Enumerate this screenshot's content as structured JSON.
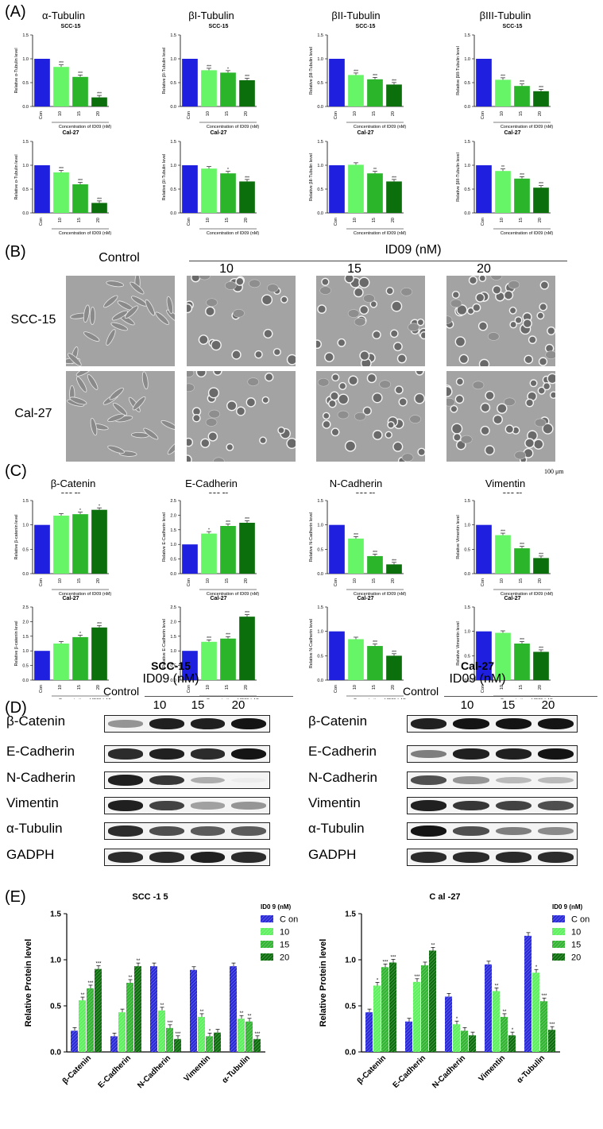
{
  "panel_letters": {
    "a": "(A)",
    "b": "(B)",
    "c": "(C)",
    "d": "(D)",
    "e": "(E)"
  },
  "panelA": {
    "titles": [
      "α-Tubulin",
      "βI-Tubulin",
      "βII-Tubulin",
      "βIII-Tubulin"
    ],
    "xlabel": "Concentration of ID09 (nM)",
    "categories": [
      "Con",
      "10",
      "15",
      "20"
    ],
    "colors": [
      "#1f1fe0",
      "#66f566",
      "#2ab52a",
      "#0b6f0b"
    ],
    "rows": [
      {
        "cell": "SCC-15",
        "ylabels": [
          "Relative α-Tubulin level",
          "Relative βI-Tubulin level",
          "Relative βII-Tubulin level",
          "Relative βIII-Tubulin level"
        ],
        "values": [
          [
            1.0,
            0.83,
            0.62,
            0.19
          ],
          [
            1.0,
            0.76,
            0.71,
            0.55
          ],
          [
            1.0,
            0.66,
            0.57,
            0.46
          ],
          [
            1.0,
            0.56,
            0.43,
            0.32
          ]
        ],
        "stars": [
          [
            "",
            "***",
            "***",
            "***"
          ],
          [
            "",
            "***",
            "*",
            "***"
          ],
          [
            "",
            "***",
            "***",
            "***"
          ],
          [
            "",
            "***",
            "***",
            "***"
          ]
        ]
      },
      {
        "cell": "Cal-27",
        "ylabels": [
          "Relative α-Tubulin level",
          "Relative βI-Tubulin level",
          "Relative βII-Tubulin level",
          "Relative βIII-Tubulin level"
        ],
        "values": [
          [
            1.0,
            0.85,
            0.6,
            0.21
          ],
          [
            1.0,
            0.93,
            0.83,
            0.66
          ],
          [
            1.0,
            1.01,
            0.83,
            0.66
          ],
          [
            1.0,
            0.88,
            0.72,
            0.53
          ]
        ],
        "stars": [
          [
            "",
            "***",
            "***",
            "***"
          ],
          [
            "",
            "",
            "*",
            "***"
          ],
          [
            "",
            "",
            "**",
            "***"
          ],
          [
            "",
            "**",
            "***",
            "***"
          ]
        ]
      }
    ]
  },
  "panelB": {
    "control": "Control",
    "treatment": "ID09 (nM)",
    "doses": [
      "10",
      "15",
      "20"
    ],
    "cells": [
      "SCC-15",
      "Cal-27"
    ],
    "scalebar": "100 μm"
  },
  "panelC": {
    "titles": [
      "β-Catenin",
      "E-Cadherin",
      "N-Cadherin",
      "Vimentin"
    ],
    "xlabel": "Concentration of ID09 (nM)",
    "categories": [
      "Con",
      "10",
      "15",
      "20"
    ],
    "colors": [
      "#1f1fe0",
      "#66f566",
      "#2ab52a",
      "#0b6f0b"
    ],
    "rows": [
      {
        "cell": "SCC-15",
        "ylabels": [
          "Relative β-catenin level",
          "Relative E-Cadherin level",
          "Relative N-Cadherin level",
          "Relative Vimentin level"
        ],
        "ylim": [
          [
            0,
            1.5
          ],
          [
            0,
            2.5
          ],
          [
            0,
            1.5
          ],
          [
            0,
            1.5
          ]
        ],
        "yticks": [
          [
            "0.0",
            "0.5",
            "1.0",
            "1.5"
          ],
          [
            "0.0",
            "0.5",
            "1.0",
            "1.5",
            "2.0",
            "2.5"
          ],
          [
            "0.0",
            "0.5",
            "1.0",
            "1.5"
          ],
          [
            "0.0",
            "0.5",
            "1.0",
            "1.5"
          ]
        ],
        "values": [
          [
            1.0,
            1.19,
            1.22,
            1.31
          ],
          [
            1.0,
            1.37,
            1.63,
            1.74
          ],
          [
            1.0,
            0.72,
            0.36,
            0.19
          ],
          [
            1.0,
            0.79,
            0.52,
            0.32
          ]
        ],
        "stars": [
          [
            "",
            "",
            "*",
            "*"
          ],
          [
            "",
            "*",
            "***",
            "***"
          ],
          [
            "",
            "***",
            "***",
            "***"
          ],
          [
            "",
            "***",
            "***",
            "***"
          ]
        ]
      },
      {
        "cell": "Cal-27",
        "ylabels": [
          "Relative β-catenin level",
          "Relative E-Cadherin level",
          "Relative N-Cadherin level",
          "Relative Vimentin level"
        ],
        "ylim": [
          [
            0,
            2.5
          ],
          [
            0,
            2.5
          ],
          [
            0,
            1.5
          ],
          [
            0,
            1.5
          ]
        ],
        "yticks": [
          [
            "0.0",
            "0.5",
            "1.0",
            "1.5",
            "2.0",
            "2.5"
          ],
          [
            "0.0",
            "0.5",
            "1.0",
            "1.5",
            "2.0",
            "2.5"
          ],
          [
            "0.0",
            "0.5",
            "1.0",
            "1.5"
          ],
          [
            "0.0",
            "0.5",
            "1.0",
            "1.5"
          ]
        ],
        "values": [
          [
            1.0,
            1.25,
            1.47,
            1.8
          ],
          [
            1.0,
            1.31,
            1.42,
            2.17
          ],
          [
            1.0,
            0.84,
            0.7,
            0.5
          ],
          [
            1.0,
            0.97,
            0.75,
            0.58
          ]
        ],
        "stars": [
          [
            "",
            "",
            "*",
            "***"
          ],
          [
            "",
            "***",
            "***",
            "***"
          ],
          [
            "",
            "",
            "***",
            "***"
          ],
          [
            "",
            "",
            "***",
            "***"
          ]
        ]
      }
    ]
  },
  "panelD": {
    "left": {
      "cell": "SCC-15",
      "treatment": "ID09 (nM)",
      "control": "Control",
      "doses": [
        "10",
        "15",
        "20"
      ],
      "intensities": [
        [
          0.45,
          0.95,
          0.95,
          1.0
        ],
        [
          0.9,
          0.95,
          0.9,
          1.0
        ],
        [
          0.95,
          0.85,
          0.35,
          0.08
        ],
        [
          0.95,
          0.8,
          0.4,
          0.45
        ],
        [
          0.9,
          0.75,
          0.7,
          0.7
        ],
        [
          0.9,
          0.9,
          0.95,
          0.9
        ]
      ]
    },
    "right": {
      "cell": "Cal-27",
      "treatment": "ID09 (nM)",
      "control": "Control",
      "doses": [
        "10",
        "15",
        "20"
      ],
      "intensities": [
        [
          0.95,
          1.0,
          1.0,
          1.0
        ],
        [
          0.55,
          0.95,
          0.95,
          1.0
        ],
        [
          0.75,
          0.45,
          0.3,
          0.3
        ],
        [
          0.95,
          0.85,
          0.8,
          0.75
        ],
        [
          1.0,
          0.75,
          0.55,
          0.5
        ],
        [
          0.9,
          0.9,
          0.9,
          0.9
        ]
      ]
    },
    "proteins": [
      "β-Catenin",
      "E-Cadherin",
      "N-Cadherin",
      "Vimentin",
      "α-Tubulin",
      "GADPH"
    ]
  },
  "panelE": {
    "ylabel": "Relative Protein level",
    "legend_title": "ID0 9 (nM)",
    "legend": [
      "C on",
      "10",
      "15",
      "20"
    ],
    "categories": [
      "β-Catenin",
      "E-Cadherin",
      "N-Cadherin",
      "Vimentin",
      "α-Tubulin"
    ],
    "colors": [
      "#2a2ad8",
      "#5ef05e",
      "#33b533",
      "#0c6e0c"
    ],
    "yticks": [
      "0.0",
      "0.5",
      "1.0",
      "1.5"
    ],
    "charts": [
      {
        "title": "SCC -1 5",
        "series": [
          [
            0.23,
            0.17,
            0.93,
            0.89,
            0.93
          ],
          [
            0.56,
            0.43,
            0.45,
            0.38,
            0.36
          ],
          [
            0.69,
            0.75,
            0.26,
            0.17,
            0.33
          ],
          [
            0.9,
            0.93,
            0.14,
            0.21,
            0.14
          ]
        ],
        "stars": [
          [
            "",
            "",
            "",
            "",
            ""
          ],
          [
            "**",
            "",
            "**",
            "**",
            "**"
          ],
          [
            "***",
            "**",
            "***",
            "*",
            "**"
          ],
          [
            "***",
            "**",
            "***",
            "",
            "***"
          ]
        ]
      },
      {
        "title": "C al -27",
        "series": [
          [
            0.43,
            0.33,
            0.6,
            0.95,
            1.26
          ],
          [
            0.72,
            0.76,
            0.3,
            0.66,
            0.86
          ],
          [
            0.92,
            0.94,
            0.23,
            0.38,
            0.55
          ],
          [
            0.97,
            1.1,
            0.18,
            0.18,
            0.24
          ]
        ],
        "stars": [
          [
            "",
            "",
            "",
            "",
            ""
          ],
          [
            "*",
            "***",
            "*",
            "**",
            "*"
          ],
          [
            "***",
            "",
            "",
            "**",
            "***"
          ],
          [
            "***",
            "**",
            "",
            "*",
            "***"
          ]
        ]
      }
    ]
  },
  "chart_data": [
    {
      "type": "bar",
      "title": "α-Tubulin SCC-15",
      "categories": [
        "Con",
        "10",
        "15",
        "20"
      ],
      "values": [
        1.0,
        0.83,
        0.62,
        0.19
      ],
      "ylim": [
        0,
        1.5
      ]
    },
    {
      "type": "bar",
      "title": "βI-Tubulin SCC-15",
      "categories": [
        "Con",
        "10",
        "15",
        "20"
      ],
      "values": [
        1.0,
        0.76,
        0.71,
        0.55
      ],
      "ylim": [
        0,
        1.5
      ]
    },
    {
      "type": "bar",
      "title": "βII-Tubulin SCC-15",
      "categories": [
        "Con",
        "10",
        "15",
        "20"
      ],
      "values": [
        1.0,
        0.66,
        0.57,
        0.46
      ],
      "ylim": [
        0,
        1.5
      ]
    },
    {
      "type": "bar",
      "title": "βIII-Tubulin SCC-15",
      "categories": [
        "Con",
        "10",
        "15",
        "20"
      ],
      "values": [
        1.0,
        0.56,
        0.43,
        0.32
      ],
      "ylim": [
        0,
        1.5
      ]
    },
    {
      "type": "bar",
      "title": "α-Tubulin Cal-27",
      "categories": [
        "Con",
        "10",
        "15",
        "20"
      ],
      "values": [
        1.0,
        0.85,
        0.6,
        0.21
      ],
      "ylim": [
        0,
        1.5
      ]
    },
    {
      "type": "bar",
      "title": "βI-Tubulin Cal-27",
      "categories": [
        "Con",
        "10",
        "15",
        "20"
      ],
      "values": [
        1.0,
        0.93,
        0.83,
        0.66
      ],
      "ylim": [
        0,
        1.5
      ]
    },
    {
      "type": "bar",
      "title": "βII-Tubulin Cal-27",
      "categories": [
        "Con",
        "10",
        "15",
        "20"
      ],
      "values": [
        1.0,
        1.01,
        0.83,
        0.66
      ],
      "ylim": [
        0,
        1.5
      ]
    },
    {
      "type": "bar",
      "title": "βIII-Tubulin Cal-27",
      "categories": [
        "Con",
        "10",
        "15",
        "20"
      ],
      "values": [
        1.0,
        0.88,
        0.72,
        0.53
      ],
      "ylim": [
        0,
        1.5
      ]
    },
    {
      "type": "bar",
      "title": "β-Catenin SCC-15",
      "categories": [
        "Con",
        "10",
        "15",
        "20"
      ],
      "values": [
        1.0,
        1.19,
        1.22,
        1.31
      ],
      "ylim": [
        0,
        1.5
      ]
    },
    {
      "type": "bar",
      "title": "E-Cadherin SCC-15",
      "categories": [
        "Con",
        "10",
        "15",
        "20"
      ],
      "values": [
        1.0,
        1.37,
        1.63,
        1.74
      ],
      "ylim": [
        0,
        2.5
      ]
    },
    {
      "type": "bar",
      "title": "N-Cadherin SCC-15",
      "categories": [
        "Con",
        "10",
        "15",
        "20"
      ],
      "values": [
        1.0,
        0.72,
        0.36,
        0.19
      ],
      "ylim": [
        0,
        1.5
      ]
    },
    {
      "type": "bar",
      "title": "Vimentin SCC-15",
      "categories": [
        "Con",
        "10",
        "15",
        "20"
      ],
      "values": [
        1.0,
        0.79,
        0.52,
        0.32
      ],
      "ylim": [
        0,
        1.5
      ]
    },
    {
      "type": "bar",
      "title": "β-Catenin Cal-27",
      "categories": [
        "Con",
        "10",
        "15",
        "20"
      ],
      "values": [
        1.0,
        1.25,
        1.47,
        1.8
      ],
      "ylim": [
        0,
        2.5
      ]
    },
    {
      "type": "bar",
      "title": "E-Cadherin Cal-27",
      "categories": [
        "Con",
        "10",
        "15",
        "20"
      ],
      "values": [
        1.0,
        1.31,
        1.42,
        2.17
      ],
      "ylim": [
        0,
        2.5
      ]
    },
    {
      "type": "bar",
      "title": "N-Cadherin Cal-27",
      "categories": [
        "Con",
        "10",
        "15",
        "20"
      ],
      "values": [
        1.0,
        0.84,
        0.7,
        0.5
      ],
      "ylim": [
        0,
        1.5
      ]
    },
    {
      "type": "bar",
      "title": "Vimentin Cal-27",
      "categories": [
        "Con",
        "10",
        "15",
        "20"
      ],
      "values": [
        1.0,
        0.97,
        0.75,
        0.58
      ],
      "ylim": [
        0,
        1.5
      ]
    },
    {
      "type": "bar",
      "title": "SCC -1 5",
      "categories": [
        "β-Catenin",
        "E-Cadherin",
        "N-Cadherin",
        "Vimentin",
        "α-Tubulin"
      ],
      "ylim": [
        0,
        1.5
      ],
      "series": [
        {
          "name": "C on",
          "values": [
            0.23,
            0.17,
            0.93,
            0.89,
            0.93
          ]
        },
        {
          "name": "10",
          "values": [
            0.56,
            0.43,
            0.45,
            0.38,
            0.36
          ]
        },
        {
          "name": "15",
          "values": [
            0.69,
            0.75,
            0.26,
            0.17,
            0.33
          ]
        },
        {
          "name": "20",
          "values": [
            0.9,
            0.93,
            0.14,
            0.21,
            0.14
          ]
        }
      ]
    },
    {
      "type": "bar",
      "title": "C al -27",
      "categories": [
        "β-Catenin",
        "E-Cadherin",
        "N-Cadherin",
        "Vimentin",
        "α-Tubulin"
      ],
      "ylim": [
        0,
        1.5
      ],
      "series": [
        {
          "name": "C on",
          "values": [
            0.43,
            0.33,
            0.6,
            0.95,
            1.26
          ]
        },
        {
          "name": "10",
          "values": [
            0.72,
            0.76,
            0.3,
            0.66,
            0.86
          ]
        },
        {
          "name": "15",
          "values": [
            0.92,
            0.94,
            0.23,
            0.38,
            0.55
          ]
        },
        {
          "name": "20",
          "values": [
            0.97,
            1.1,
            0.18,
            0.18,
            0.24
          ]
        }
      ]
    }
  ]
}
